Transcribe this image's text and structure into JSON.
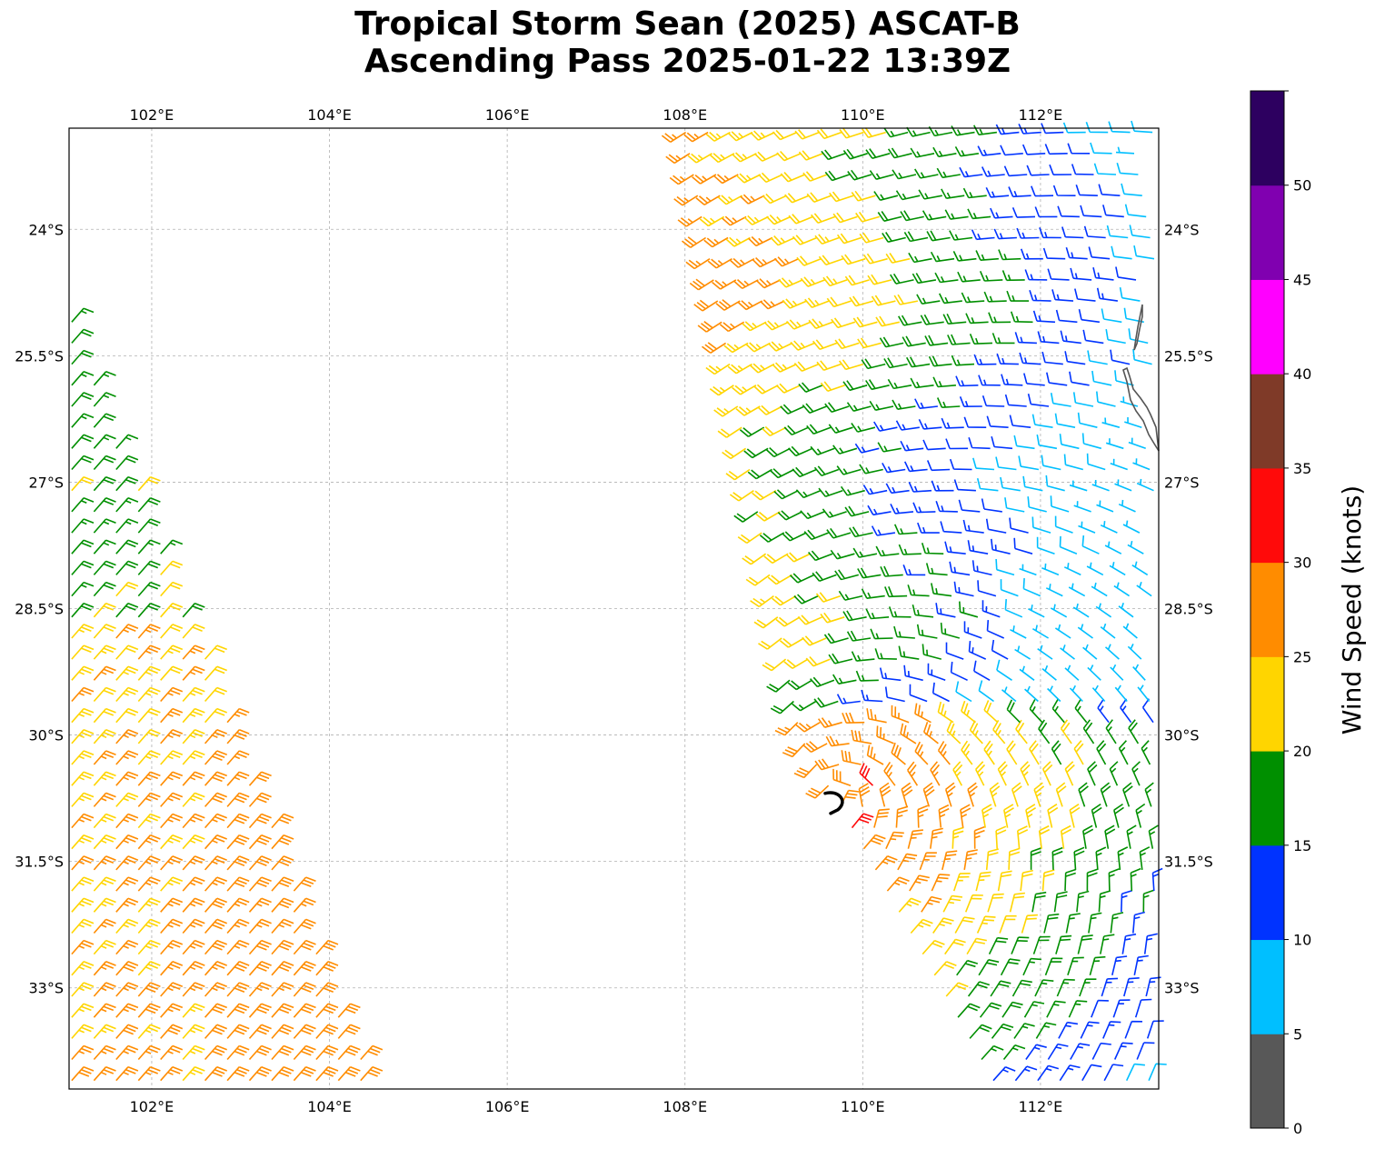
{
  "title": {
    "line1": "Tropical Storm Sean (2025) ASCAT-B",
    "line2": "Ascending Pass 2025-01-22 13:39Z"
  },
  "axes": {
    "lon_ticks": [
      "102°E",
      "104°E",
      "106°E",
      "108°E",
      "110°E",
      "112°E"
    ],
    "lat_ticks": [
      "24°S",
      "25.5°S",
      "27°S",
      "28.5°S",
      "30°S",
      "31.5°S",
      "33°S"
    ]
  },
  "chart_data": {
    "type": "map",
    "extent": {
      "lon": [
        101.07,
        113.33
      ],
      "lat": [
        -34.2,
        -22.8
      ]
    },
    "lon_tick_values": [
      102,
      104,
      106,
      108,
      110,
      112
    ],
    "lat_tick_values": [
      -24,
      -25.5,
      -27,
      -28.5,
      -30,
      -31.5,
      -33
    ],
    "gridlines": true,
    "storm_center": {
      "lon": 109.7,
      "lat": -30.8
    },
    "colorbar": {
      "label": "Wind Speed (knots)",
      "bounds": [
        0,
        5,
        10,
        15,
        20,
        25,
        30,
        35,
        40,
        45,
        50,
        55
      ],
      "tick_labels": [
        "0",
        "5",
        "10",
        "15",
        "20",
        "25",
        "30",
        "35",
        "40",
        "45",
        "50"
      ],
      "colors": [
        "#585858",
        "#00bfff",
        "#0033ff",
        "#008f00",
        "#ffd500",
        "#ff8c00",
        "#ff0a0a",
        "#7f3a28",
        "#ff00ff",
        "#8000b0",
        "#2d0060"
      ]
    },
    "wind_field": {
      "swaths": [
        {
          "lon_range": [
            101.07,
            104.5
          ],
          "lat_range": [
            -34.2,
            -25.0
          ],
          "description_speed_knots": "15-30"
        },
        {
          "lon_range": [
            107.9,
            113.33
          ],
          "lat_range": [
            -34.2,
            -22.8
          ],
          "description_speed_knots": "5-35"
        }
      ]
    }
  }
}
